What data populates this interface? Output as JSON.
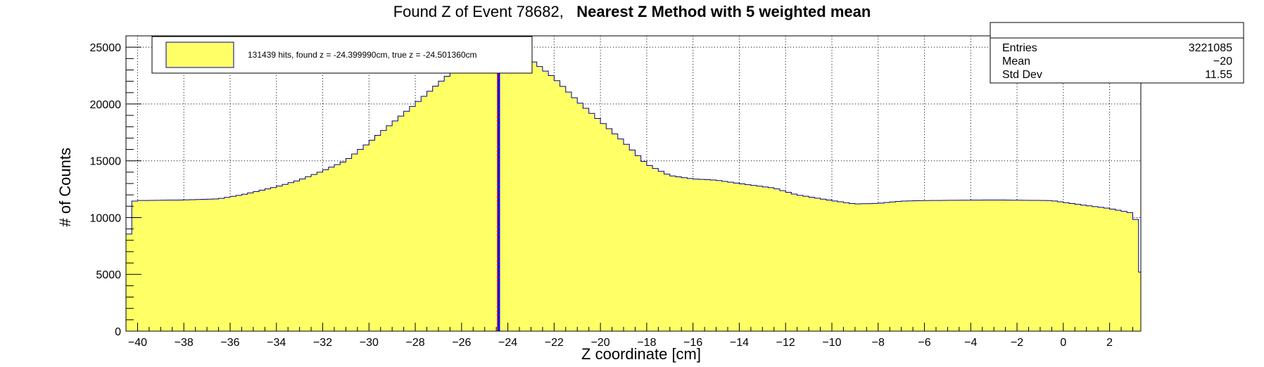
{
  "chart_data": {
    "type": "bar",
    "title_prefix": "Found Z of Event 78682,",
    "title_bold": "Nearest Z Method with 5 weighted mean",
    "xlabel": "Z coordinate [cm]",
    "ylabel": "# of Counts",
    "xlim": [
      -40.5,
      3.35
    ],
    "ylim": [
      0,
      26000
    ],
    "x_ticks": [
      -40,
      -38,
      -36,
      -34,
      -32,
      -30,
      -28,
      -26,
      -24,
      -22,
      -20,
      -18,
      -16,
      -14,
      -12,
      -10,
      -8,
      -6,
      -4,
      -2,
      0,
      2
    ],
    "y_ticks": [
      0,
      5000,
      10000,
      15000,
      20000,
      25000
    ],
    "grid": true,
    "bin_width": 0.25,
    "bin_start": -40.5,
    "profile": [
      [
        -40.5,
        5700
      ],
      [
        -40.25,
        11400
      ],
      [
        -40.0,
        11500
      ],
      [
        -38.0,
        11550
      ],
      [
        -36.5,
        11650
      ],
      [
        -35.5,
        12000
      ],
      [
        -34.0,
        12700
      ],
      [
        -33.0,
        13300
      ],
      [
        -32.0,
        14100
      ],
      [
        -31.0,
        15000
      ],
      [
        -30.0,
        16600
      ],
      [
        -29.0,
        18300
      ],
      [
        -28.0,
        20000
      ],
      [
        -27.0,
        21800
      ],
      [
        -26.0,
        23500
      ],
      [
        -25.0,
        24700
      ],
      [
        -24.4,
        25200
      ],
      [
        -23.5,
        24200
      ],
      [
        -23.0,
        23900
      ],
      [
        -22.0,
        22300
      ],
      [
        -21.0,
        20300
      ],
      [
        -20.0,
        18500
      ],
      [
        -19.0,
        16700
      ],
      [
        -18.0,
        14700
      ],
      [
        -17.0,
        13700
      ],
      [
        -16.0,
        13400
      ],
      [
        -15.0,
        13300
      ],
      [
        -14.0,
        13000
      ],
      [
        -12.5,
        12600
      ],
      [
        -11.5,
        12000
      ],
      [
        -10.0,
        11500
      ],
      [
        -9.0,
        11200
      ],
      [
        -8.0,
        11250
      ],
      [
        -7.0,
        11450
      ],
      [
        -6.0,
        11500
      ],
      [
        -3.0,
        11550
      ],
      [
        -0.5,
        11500
      ],
      [
        0.5,
        11200
      ],
      [
        2.0,
        10800
      ],
      [
        3.1,
        10350
      ],
      [
        3.35,
        5200
      ]
    ],
    "found_z": -24.39999,
    "true_z": -24.50136,
    "legend": {
      "position": "top-left",
      "text": "131439 hits, found z = -24.399990cm, true z = -24.501360cm"
    },
    "stats": {
      "position": "top-right",
      "rows": [
        {
          "label": "Entries",
          "value": "3221085"
        },
        {
          "label": "Mean",
          "value": "−20"
        },
        {
          "label": "Std Dev",
          "value": "11.55"
        }
      ]
    },
    "colors": {
      "fill": "#ffff66",
      "outline": "#000099",
      "found_line": "#0000ff",
      "true_line": "#ff0000"
    }
  }
}
